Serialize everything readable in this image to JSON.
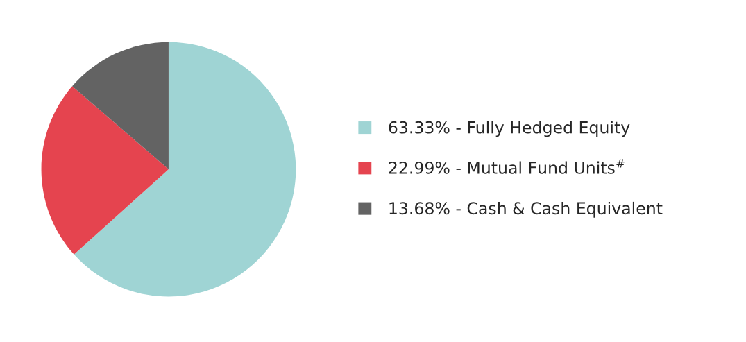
{
  "chart_data": {
    "type": "pie",
    "categories": [
      "63.33% - Fully Hedged Equity",
      "22.99% - Mutual Fund Units$^{#}$",
      "13.68% - Cash & Cash Equivalent"
    ],
    "values": [
      63.33,
      22.99,
      13.68
    ],
    "colors": [
      "#9fd4d4",
      "#e5444f",
      "#636363"
    ],
    "legend": "right"
  }
}
